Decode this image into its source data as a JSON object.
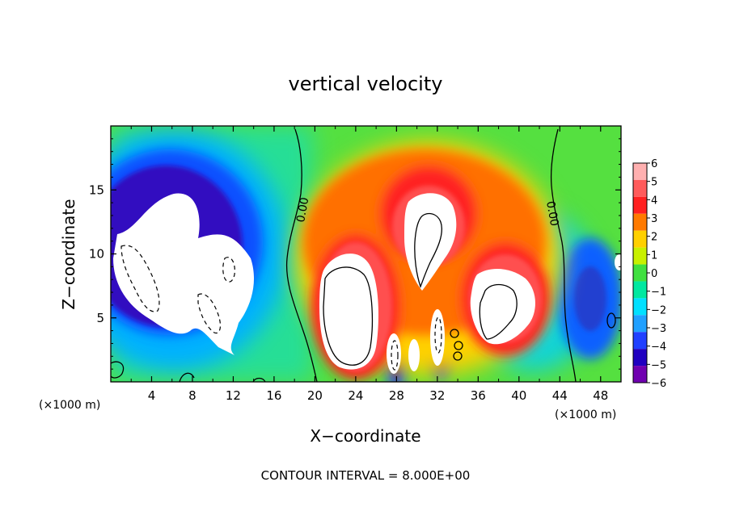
{
  "chart_data": {
    "type": "heatmap",
    "title": "vertical velocity",
    "xlabel": "X−coordinate",
    "ylabel": "Z−coordinate",
    "x_unit_label": "(×1000 m)",
    "x_unit_label_right": "(×1000 m)",
    "footer": "CONTOUR INTERVAL = 8.000E+00",
    "xlim": [
      0,
      50
    ],
    "ylim": [
      0,
      20
    ],
    "x_ticks": [
      4,
      8,
      12,
      16,
      20,
      24,
      28,
      32,
      36,
      40,
      44,
      48
    ],
    "y_ticks": [
      5,
      10,
      15
    ],
    "colorbar": {
      "min": -6,
      "max": 6,
      "labels": [
        "6",
        "5",
        "4",
        "3",
        "2",
        "1",
        "0",
        "−1",
        "−2",
        "−3",
        "−4",
        "−5",
        "−6"
      ],
      "colors": [
        "#ffb0b0",
        "#ff5b5b",
        "#ff2020",
        "#ff7a00",
        "#ffd000",
        "#c8f000",
        "#40e040",
        "#00e8a0",
        "#00e0ff",
        "#20a0ff",
        "#2040ff",
        "#2000c0",
        "#7000b0"
      ]
    },
    "contour_labels": [
      {
        "text": "0.00",
        "x": 19.0,
        "z": 13.5
      },
      {
        "text": "0.00",
        "x": 43.5,
        "z": 13.2
      }
    ],
    "contour_interval": 8.0,
    "features": [
      {
        "sign": "negative",
        "label": "downdraft",
        "x": 6.0,
        "z": 9.5
      },
      {
        "sign": "negative",
        "label": "downdraft",
        "x": 10.0,
        "z": 7.0
      },
      {
        "sign": "positive",
        "label": "updraft",
        "x": 23.5,
        "z": 6.0
      },
      {
        "sign": "positive",
        "label": "updraft",
        "x": 30.5,
        "z": 12.0
      },
      {
        "sign": "positive",
        "label": "updraft",
        "x": 38.0,
        "z": 5.5
      },
      {
        "sign": "negative",
        "label": "downdraft",
        "x": 27.8,
        "z": 3.0
      },
      {
        "sign": "negative",
        "label": "downdraft",
        "x": 32.0,
        "z": 4.0
      }
    ]
  }
}
